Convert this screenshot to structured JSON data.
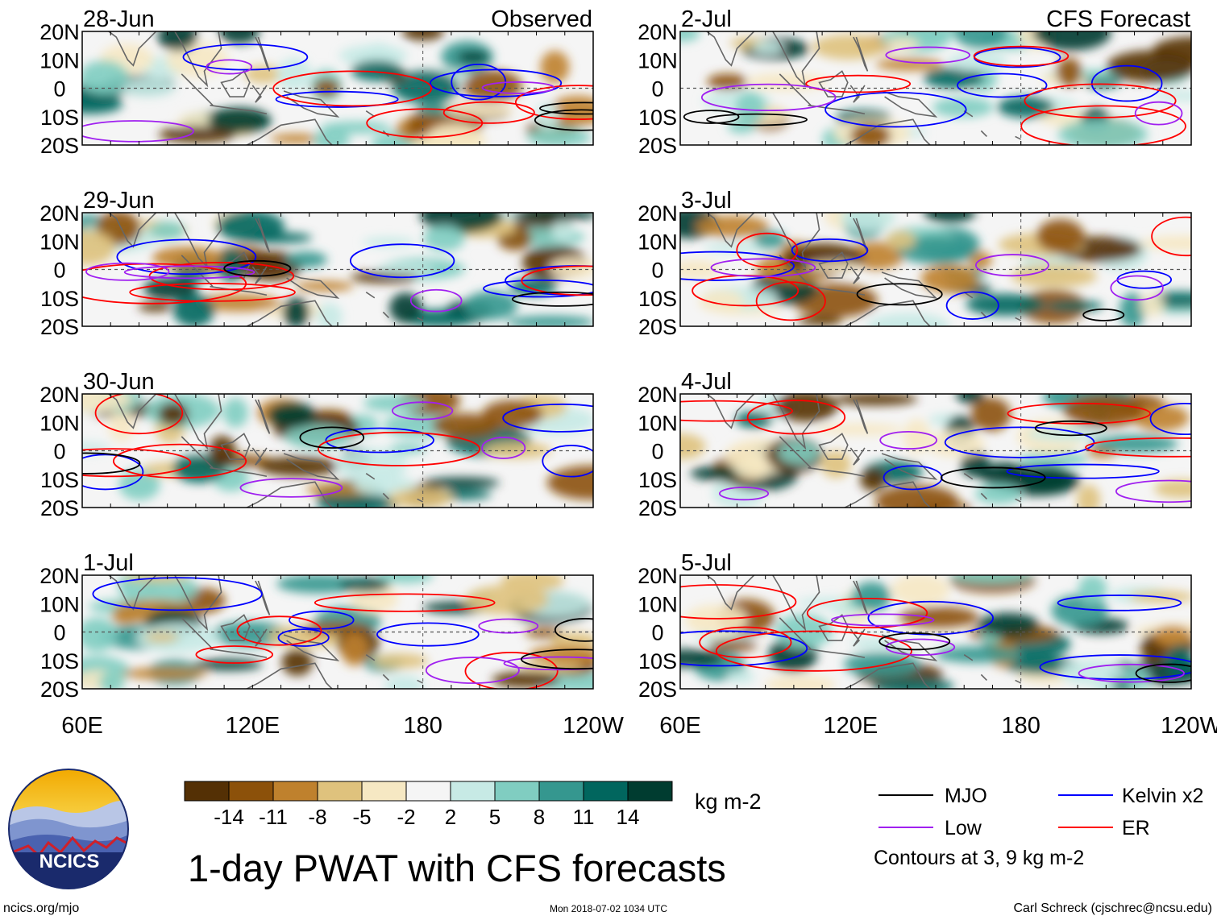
{
  "chart_data": {
    "type": "heatmap",
    "title": "1-day PWAT with CFS forecasts",
    "columns": [
      {
        "label": "Observed",
        "panels": [
          "28-Jun",
          "29-Jun",
          "30-Jun",
          "1-Jul"
        ]
      },
      {
        "label": "CFS Forecast",
        "panels": [
          "2-Jul",
          "3-Jul",
          "4-Jul",
          "5-Jul"
        ]
      }
    ],
    "lat_ticks": [
      "20N",
      "10N",
      "0",
      "10S",
      "20S"
    ],
    "lat_values": [
      20,
      10,
      0,
      -10,
      -20
    ],
    "lon_ticks": [
      "60E",
      "120E",
      "180",
      "120W"
    ],
    "lon_values": [
      60,
      120,
      180,
      240
    ],
    "xlim": [
      60,
      240
    ],
    "ylim": [
      -20,
      20
    ],
    "colorbar": {
      "unit": "kg m-2",
      "ticks": [
        "-14",
        "-11",
        "-8",
        "-5",
        "-2",
        "2",
        "5",
        "8",
        "11",
        "14"
      ],
      "colors": [
        "#543005",
        "#8c510a",
        "#bf812d",
        "#dfc27d",
        "#f6e8c3",
        "#f5f5f5",
        "#c7eae5",
        "#80cdc1",
        "#35978f",
        "#01665e",
        "#003c30"
      ]
    },
    "legend": [
      {
        "label": "MJO",
        "color": "#000000"
      },
      {
        "label": "Kelvin x2",
        "color": "#0000ff"
      },
      {
        "label": "Low",
        "color": "#a020f0"
      },
      {
        "label": "ER",
        "color": "#ff0000"
      }
    ],
    "contour_note": "Contours at 3, 9 kg m-2"
  },
  "footer": {
    "logo_text": "NCICS",
    "site": "ncics.org/mjo",
    "timestamp": "Mon 2018-07-02 1034 UTC",
    "credit": "Carl Schreck (cjschrec@ncsu.edu)"
  },
  "colors": {
    "zero_line": "#555555",
    "coast": "#666666"
  }
}
